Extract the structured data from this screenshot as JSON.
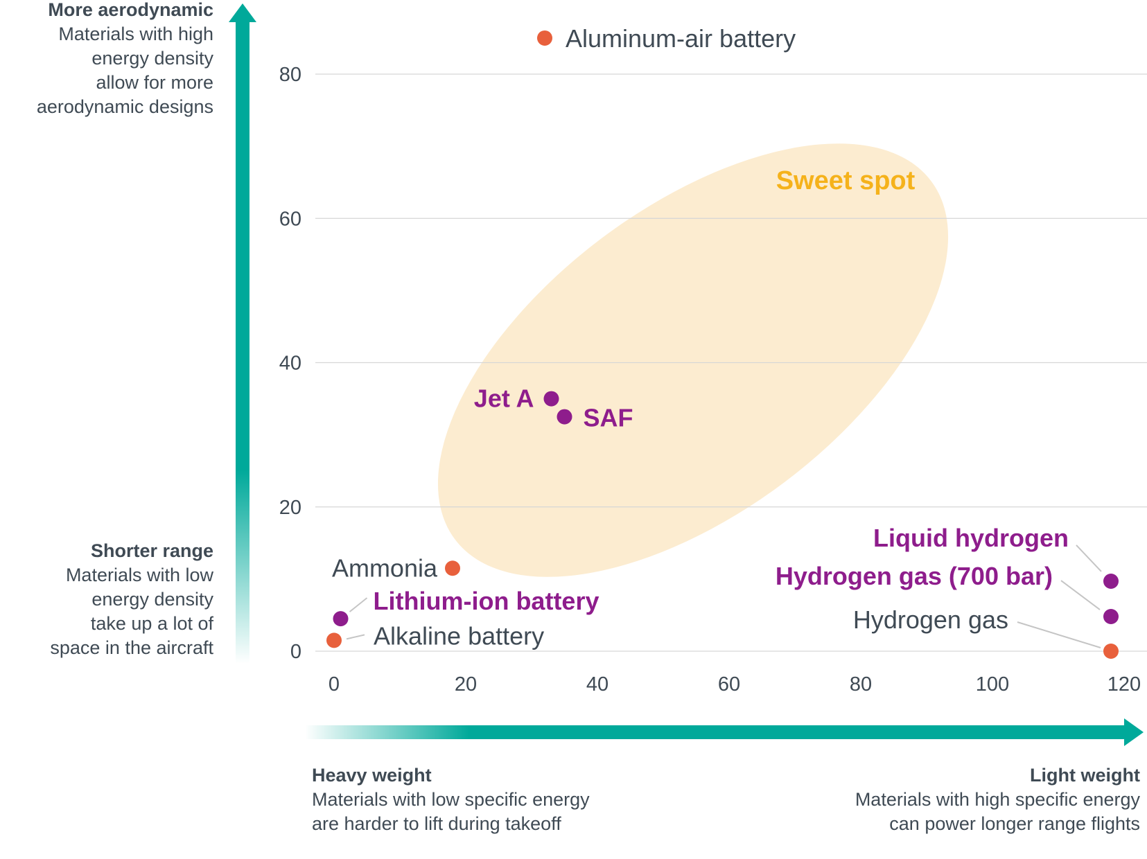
{
  "colors": {
    "teal": "#00a99a",
    "purple": "#8e1d8c",
    "orange": "#e8603c",
    "gold": "#f5b21b",
    "ellipse_fill": "#fcecd0",
    "text": "#3f4a54",
    "grid": "#d6d6d6"
  },
  "annotations": {
    "top_left": {
      "heading": "More aerodynamic",
      "lines": [
        "Materials with high",
        "energy density",
        "allow for more",
        "aerodynamic designs"
      ]
    },
    "mid_left": {
      "heading": "Shorter range",
      "lines": [
        "Materials with low",
        "energy density",
        "take up a lot of",
        "space in the aircraft"
      ]
    },
    "bottom_left": {
      "heading": "Heavy weight",
      "lines": [
        "Materials with low specific energy",
        "are harder to lift during takeoff"
      ]
    },
    "bottom_right": {
      "heading": "Light weight",
      "lines": [
        "Materials with high specific energy",
        "can power longer range flights"
      ]
    }
  },
  "chart_data": {
    "type": "scatter",
    "title": "",
    "xlabel": "",
    "ylabel": "",
    "xlim": [
      0,
      120
    ],
    "ylim": [
      0,
      80
    ],
    "x_ticks": [
      0,
      20,
      40,
      60,
      80,
      100,
      120
    ],
    "y_ticks": [
      0,
      20,
      40,
      60,
      80
    ],
    "grid": true,
    "region": {
      "label": "Sweet spot",
      "description": "tilted ellipse spanning roughly x 15–96, y 12–72"
    },
    "points": [
      {
        "name": "Aluminum-air battery",
        "x": 32,
        "y": 85,
        "color": "orange"
      },
      {
        "name": "Jet A",
        "x": 33,
        "y": 35,
        "color": "purple"
      },
      {
        "name": "SAF",
        "x": 35,
        "y": 32.5,
        "color": "purple"
      },
      {
        "name": "Ammonia",
        "x": 18,
        "y": 11.5,
        "color": "orange"
      },
      {
        "name": "Lithium-ion battery",
        "x": 1,
        "y": 4.5,
        "color": "purple"
      },
      {
        "name": "Alkaline battery",
        "x": 0,
        "y": 1.5,
        "color": "orange"
      },
      {
        "name": "Liquid hydrogen",
        "x": 118,
        "y": 9.7,
        "color": "purple"
      },
      {
        "name": "Hydrogen gas (700 bar)",
        "x": 118,
        "y": 4.8,
        "color": "purple"
      },
      {
        "name": "Hydrogen gas",
        "x": 118,
        "y": 0,
        "color": "orange"
      }
    ]
  }
}
